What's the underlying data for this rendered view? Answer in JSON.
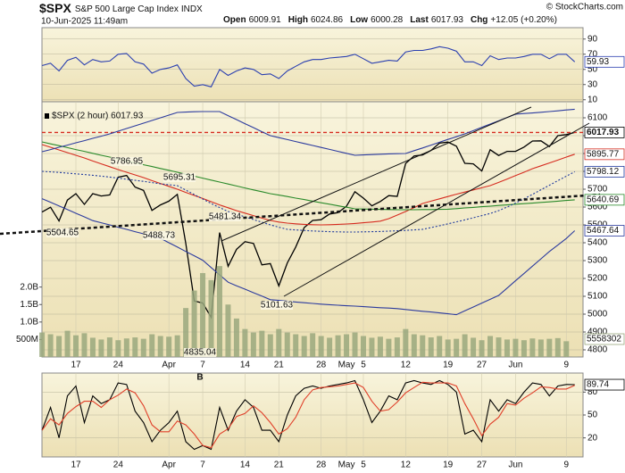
{
  "header": {
    "symbol": "$SPX",
    "name": "S&P 500 Large Cap Index",
    "exchange": "INDX",
    "date": "10-Jun-2025 11:49am",
    "copyright": "© StockCharts.com",
    "quote": [
      {
        "label": "Open",
        "value": 6009.91
      },
      {
        "label": "High",
        "value": 6024.86
      },
      {
        "label": "Low",
        "value": 6000.28
      },
      {
        "label": "Last",
        "value": 6017.93
      },
      {
        "label": "Chg",
        "value": "+12.05 (+0.20%)"
      }
    ]
  },
  "chart_data": [
    {
      "type": "line",
      "ylim": [
        5,
        105
      ],
      "yticks": [
        90,
        70,
        50,
        30,
        10
      ],
      "grid": true,
      "series": [
        {
          "color": "#2a3fb0",
          "label_last": true,
          "values": [
            55,
            58,
            48,
            62,
            66,
            56,
            63,
            60,
            61,
            70,
            71,
            60,
            57,
            45,
            50,
            52,
            56,
            38,
            28,
            30,
            27,
            50,
            42,
            48,
            52,
            50,
            43,
            44,
            38,
            48,
            54,
            60,
            63,
            63,
            65,
            66,
            67,
            70,
            64,
            58,
            60,
            62,
            61,
            73,
            75,
            75,
            77,
            80,
            78,
            74,
            60,
            60,
            55,
            68,
            63,
            65,
            65,
            67,
            70,
            70,
            64,
            70,
            70,
            59.93
          ]
        }
      ]
    },
    {
      "type": "line",
      "legend": "$SPX (2 hour) 6017.93",
      "annotation": "B",
      "price_annotations": [
        5786.95,
        5695.31,
        5504.65,
        5488.73,
        5481.34,
        5101.63,
        4835.04
      ],
      "categories": [
        null,
        null,
        null,
        null,
        "17",
        null,
        null,
        null,
        null,
        "24",
        null,
        null,
        null,
        null,
        null,
        "Apr",
        null,
        null,
        null,
        "7",
        null,
        null,
        null,
        null,
        "14",
        null,
        null,
        null,
        "21",
        null,
        null,
        null,
        null,
        "28",
        null,
        null,
        "May",
        null,
        "5",
        null,
        null,
        null,
        null,
        "12",
        null,
        null,
        null,
        null,
        "19",
        null,
        null,
        null,
        "27",
        null,
        null,
        null,
        "Jun",
        null,
        null,
        null,
        null,
        null,
        "9",
        null
      ],
      "ylim": [
        4760,
        6190
      ],
      "yticks": [
        4800,
        4900,
        5000,
        5100,
        5200,
        5300,
        5400,
        5500,
        5600,
        5700,
        5800,
        5900,
        6000,
        6100
      ],
      "grid": true,
      "y2lim": [
        0,
        7300000000
      ],
      "y2ticks": [
        {
          "value": 500000000,
          "label": "500M"
        },
        {
          "value": 1000000000,
          "label": "1.0B"
        },
        {
          "value": 1500000000,
          "label": "1.5B"
        },
        {
          "value": 2000000000,
          "label": "2.0B"
        }
      ],
      "series": [
        {
          "color": "#000000",
          "label_last": true,
          "last_line": true,
          "values": [
            5572,
            5599,
            5522,
            5639,
            5675,
            5615,
            5675,
            5662,
            5668,
            5767,
            5777,
            5712,
            5693,
            5581,
            5612,
            5633,
            5671,
            5396,
            5074,
            5062,
            4982,
            5457,
            5268,
            5363,
            5406,
            5396,
            5276,
            5283,
            5158,
            5287,
            5376,
            5485,
            5525,
            5529,
            5561,
            5569,
            5604,
            5686,
            5650,
            5607,
            5631,
            5664,
            5660,
            5844,
            5886,
            5892,
            5917,
            5958,
            5964,
            5941,
            5845,
            5842,
            5802,
            5921,
            5889,
            5912,
            5912,
            5936,
            5970,
            5971,
            5939,
            6000,
            6006,
            6017.93
          ]
        },
        {
          "color": "#d62b1f",
          "label_last": true,
          "values": [
            5950,
            5935,
            5920,
            5905,
            5890,
            5875,
            5858,
            5842,
            5826,
            5810,
            5795,
            5780,
            5765,
            5748,
            5732,
            5716,
            5700,
            5682,
            5665,
            5648,
            5630,
            5612,
            5596,
            5580,
            5566,
            5552,
            5538,
            5525,
            5516,
            5510,
            5506,
            5503,
            5501,
            5500,
            5501,
            5503,
            5505,
            5508,
            5512,
            5516,
            5521,
            5535,
            5555,
            5575,
            5597,
            5620,
            5633,
            5646,
            5659,
            5672,
            5684,
            5696,
            5708,
            5720,
            5738,
            5757,
            5776,
            5795,
            5815,
            5831,
            5847,
            5863,
            5880,
            5895.77
          ]
        },
        {
          "color": "#2a8a2a",
          "label_last": true,
          "values": [
            5965,
            5954,
            5944,
            5933,
            5922,
            5912,
            5901,
            5890,
            5880,
            5869,
            5858,
            5848,
            5837,
            5827,
            5816,
            5806,
            5795,
            5784,
            5773,
            5762,
            5751,
            5740,
            5729,
            5718,
            5707,
            5696,
            5686,
            5675,
            5667,
            5659,
            5650,
            5642,
            5633,
            5624,
            5616,
            5607,
            5599,
            5590,
            5589,
            5588,
            5587,
            5586,
            5585,
            5585,
            5585,
            5586,
            5586,
            5587,
            5588,
            5591,
            5595,
            5598,
            5602,
            5605,
            5609,
            5612,
            5616,
            5619,
            5622,
            5626,
            5629,
            5633,
            5637,
            5640.69
          ]
        },
        {
          "color": "#1f3a9e",
          "dash": true,
          "label_last": true,
          "values": [
            5800,
            5797,
            5794,
            5790,
            5786,
            5782,
            5778,
            5773,
            5768,
            5762,
            5756,
            5750,
            5744,
            5737,
            5730,
            5725,
            5720,
            5695,
            5670,
            5645,
            5620,
            5597,
            5575,
            5560,
            5545,
            5530,
            5515,
            5500,
            5487,
            5475,
            5472,
            5469,
            5466,
            5464,
            5462,
            5461,
            5460,
            5460,
            5461,
            5462,
            5463,
            5465,
            5467,
            5469,
            5472,
            5475,
            5485,
            5495,
            5506,
            5517,
            5528,
            5540,
            5552,
            5564,
            5580,
            5600,
            5622,
            5646,
            5671,
            5697,
            5722,
            5748,
            5773,
            5798.12
          ]
        },
        {
          "color": "#2b3a9e",
          "values": [
            5910,
            5922,
            5935,
            5947,
            5960,
            5972,
            5985,
            5997,
            6010,
            6025,
            6040,
            6055,
            6070,
            6085,
            6100,
            6115,
            6130,
            6132,
            6134,
            6135,
            6135,
            6135,
            6112,
            6090,
            6067,
            6045,
            6022,
            6000,
            5989,
            5978,
            5967,
            5956,
            5945,
            5934,
            5923,
            5912,
            5901,
            5890,
            5892,
            5894,
            5896,
            5898,
            5899,
            5900,
            5916,
            5931,
            5947,
            5963,
            5979,
            5994,
            6010,
            6028,
            6047,
            6065,
            6083,
            6102,
            6120,
            6124,
            6127,
            6131,
            6135,
            6139,
            6144,
            6148
          ]
        },
        {
          "color": "#2b3a9e",
          "label_last": true,
          "values": [
            5647,
            5627,
            5606,
            5586,
            5565,
            5545,
            5524,
            5512,
            5500,
            5487,
            5475,
            5462,
            5450,
            5437,
            5425,
            5400,
            5376,
            5351,
            5327,
            5302,
            5261,
            5220,
            5179,
            5159,
            5140,
            5120,
            5101,
            5081,
            5077,
            5073,
            5068,
            5064,
            5060,
            5056,
            5053,
            5050,
            5047,
            5045,
            5042,
            5039,
            5036,
            5034,
            5031,
            5026,
            5021,
            5016,
            5012,
            5007,
            5002,
            4997,
            5019,
            5040,
            5062,
            5083,
            5105,
            5146,
            5187,
            5228,
            5269,
            5310,
            5351,
            5387,
            5424,
            5467.64
          ]
        },
        {
          "type": "bar",
          "axis": "y2",
          "color": "#9aa87e",
          "label_last": true,
          "values": [
            700000000,
            650000000,
            600000000,
            750000000,
            620000000,
            680000000,
            550000000,
            500000000,
            560000000,
            480000000,
            530000000,
            560000000,
            520000000,
            650000000,
            600000000,
            580000000,
            620000000,
            1400000000,
            1900000000,
            2400000000,
            2200000000,
            2600000000,
            1500000000,
            1100000000,
            800000000,
            700000000,
            750000000,
            650000000,
            800000000,
            700000000,
            650000000,
            600000000,
            680000000,
            600000000,
            550000000,
            620000000,
            650000000,
            700000000,
            600000000,
            550000000,
            580000000,
            520000000,
            560000000,
            800000000,
            650000000,
            620000000,
            560000000,
            600000000,
            500000000,
            520000000,
            650000000,
            550000000,
            480000000,
            600000000,
            560000000,
            500000000,
            520000000,
            480000000,
            530000000,
            500000000,
            520000000,
            540000000,
            450000000,
            5558302
          ]
        }
      ]
    },
    {
      "type": "line",
      "categories": [
        null,
        null,
        null,
        null,
        "17",
        null,
        null,
        null,
        null,
        "24",
        null,
        null,
        null,
        null,
        null,
        "Apr",
        null,
        null,
        null,
        "7",
        null,
        null,
        null,
        null,
        "14",
        null,
        null,
        null,
        "21",
        null,
        null,
        null,
        null,
        "28",
        null,
        null,
        "May",
        null,
        "5",
        null,
        null,
        null,
        null,
        "12",
        null,
        null,
        null,
        null,
        "19",
        null,
        null,
        null,
        "27",
        null,
        null,
        null,
        "Jun",
        null,
        null,
        null,
        null,
        null,
        "9",
        null
      ],
      "ylim": [
        -5,
        105
      ],
      "yticks": [
        80,
        50,
        20
      ],
      "grid": true,
      "series": [
        {
          "color": "#000000",
          "label_last": true,
          "values": [
            30,
            60,
            20,
            75,
            88,
            40,
            75,
            65,
            70,
            92,
            90,
            55,
            40,
            15,
            30,
            40,
            55,
            15,
            5,
            10,
            5,
            60,
            30,
            55,
            70,
            60,
            30,
            30,
            15,
            50,
            75,
            85,
            88,
            85,
            88,
            90,
            92,
            95,
            70,
            40,
            55,
            75,
            70,
            92,
            95,
            92,
            90,
            95,
            90,
            80,
            25,
            30,
            15,
            70,
            55,
            70,
            65,
            80,
            92,
            90,
            75,
            88,
            90,
            89.74
          ]
        },
        {
          "color": "#e0402a",
          "values": [
            30,
            45,
            37,
            52,
            61,
            68,
            68,
            60,
            70,
            76,
            84,
            79,
            62,
            37,
            28,
            28,
            42,
            37,
            25,
            10,
            7,
            25,
            32,
            48,
            52,
            62,
            53,
            40,
            25,
            32,
            47,
            70,
            83,
            86,
            87,
            88,
            90,
            92,
            86,
            68,
            55,
            57,
            67,
            79,
            86,
            93,
            92,
            92,
            92,
            88,
            65,
            45,
            23,
            38,
            47,
            65,
            63,
            72,
            79,
            87,
            86,
            84,
            84,
            89
          ]
        }
      ]
    }
  ]
}
